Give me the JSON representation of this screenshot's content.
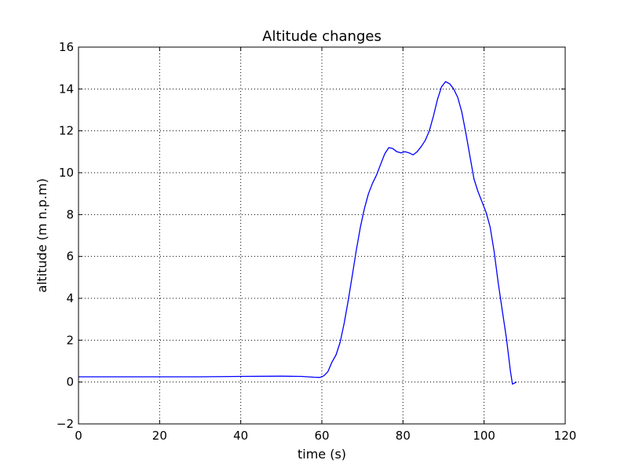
{
  "chart_data": {
    "type": "line",
    "title": "Altitude changes",
    "xlabel": "time (s)",
    "ylabel": "altitude (m n.p.m)",
    "xlim": [
      0,
      120
    ],
    "ylim": [
      -2,
      16
    ],
    "x_ticks": [
      "0",
      "20",
      "40",
      "60",
      "80",
      "100",
      "120"
    ],
    "y_ticks": [
      "−2",
      "0",
      "2",
      "4",
      "6",
      "8",
      "10",
      "12",
      "14",
      "16"
    ],
    "grid": true,
    "legend": "none",
    "series": [
      {
        "color": "#0000ff",
        "x": [
          0,
          10,
          20,
          30,
          40,
          50,
          55,
          58,
          59.5,
          60.5,
          61.5,
          62.5,
          63.5,
          64.5,
          65.5,
          66.5,
          67.5,
          68.5,
          69.5,
          70.5,
          71.5,
          72.5,
          73.5,
          74.5,
          75.5,
          76.5,
          77.5,
          78.5,
          79.5,
          80.5,
          81.5,
          82.5,
          83.5,
          84.5,
          85.5,
          86.5,
          87.5,
          88.5,
          89.5,
          90.5,
          91.5,
          92.5,
          93.5,
          94.5,
          95.5,
          96.5,
          97.5,
          98.5,
          99.5,
          100.5,
          101.5,
          102.5,
          103.5,
          104.5,
          105.5,
          106.5,
          107,
          108
        ],
        "values": [
          0.25,
          0.25,
          0.25,
          0.25,
          0.27,
          0.28,
          0.27,
          0.23,
          0.22,
          0.3,
          0.5,
          0.95,
          1.3,
          1.9,
          2.8,
          3.9,
          5.1,
          6.3,
          7.4,
          8.3,
          9.0,
          9.5,
          9.9,
          10.4,
          10.9,
          11.2,
          11.15,
          11.0,
          10.95,
          11.0,
          10.95,
          10.85,
          11.0,
          11.25,
          11.55,
          12.0,
          12.7,
          13.5,
          14.1,
          14.35,
          14.25,
          14.0,
          13.6,
          12.9,
          11.9,
          10.8,
          9.7,
          9.1,
          8.6,
          8.1,
          7.4,
          6.2,
          4.7,
          3.4,
          2.1,
          0.5,
          -0.1,
          0.0
        ]
      }
    ]
  }
}
